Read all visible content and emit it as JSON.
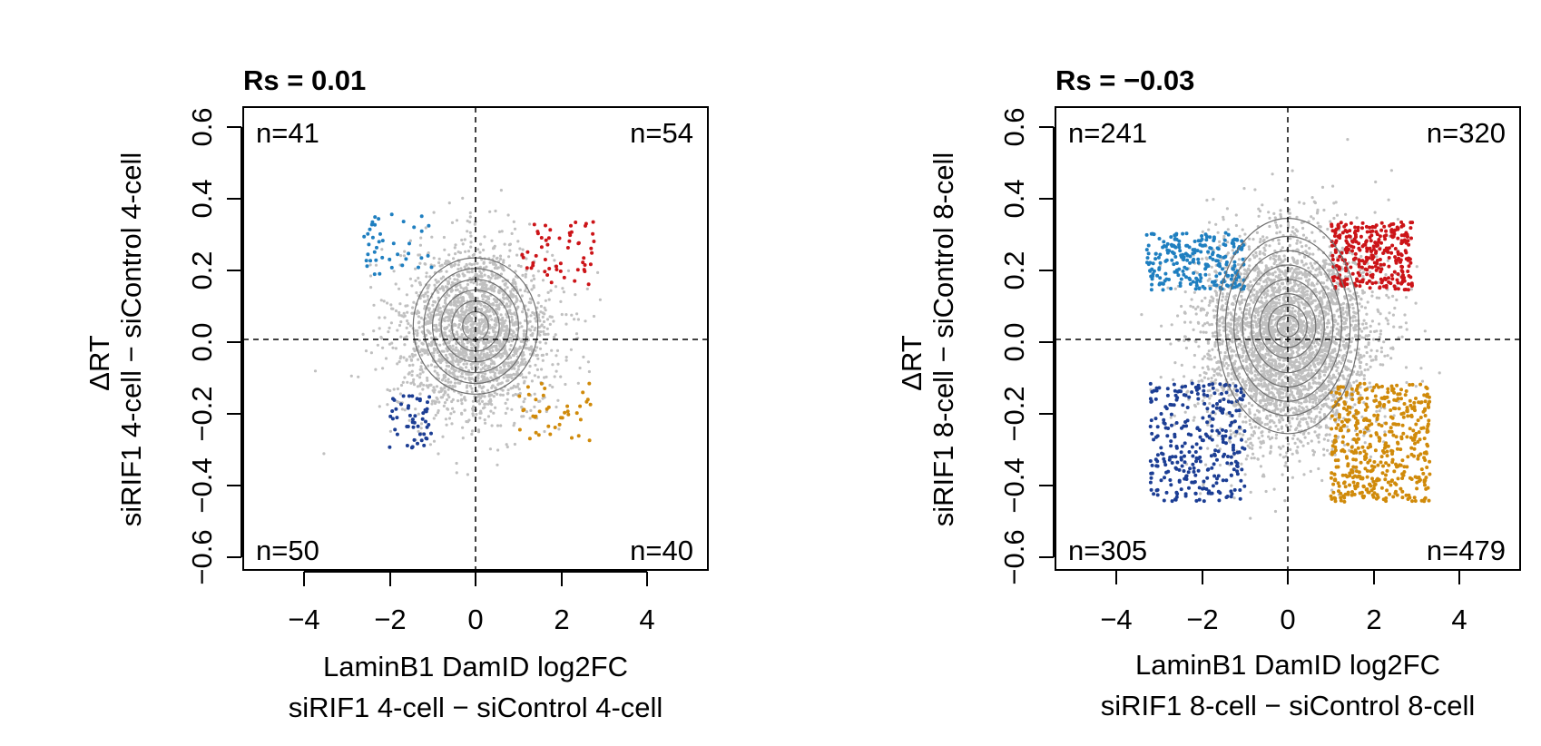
{
  "chart_data": [
    {
      "type": "scatter",
      "title": "Rs = 0.01",
      "xlabel": [
        "LaminB1 DamID log2FC",
        "siRIF1 4-cell − siControl 4-cell"
      ],
      "ylabel": [
        "ΔRT",
        "siRIF1 4-cell − siControl 4-cell"
      ],
      "xlim": [
        -5.4,
        5.4
      ],
      "ylim": [
        -0.64,
        0.65
      ],
      "xticks": [
        -4,
        -2,
        0,
        2,
        4
      ],
      "xtick_labels": [
        "−4",
        "−2",
        "0",
        "2",
        "4"
      ],
      "yticks": [
        -0.6,
        -0.4,
        -0.2,
        0.0,
        0.2,
        0.4,
        0.6
      ],
      "ytick_labels": [
        "−0.6",
        "−0.4",
        "−0.2",
        "0.0",
        "0.2",
        "0.4",
        "0.6"
      ],
      "reference_lines": {
        "x": 0,
        "y": 0
      },
      "background_cloud": {
        "center": [
          0,
          0.02
        ],
        "sd": [
          0.9,
          0.12
        ],
        "count": 2200,
        "color": "#c0c0c0"
      },
      "contours": {
        "center": [
          0,
          0.04
        ],
        "rx": [
          0.3,
          0.55,
          0.8,
          1.0,
          1.2,
          1.45
        ],
        "ry": [
          0.04,
          0.07,
          0.1,
          0.13,
          0.16,
          0.19
        ]
      },
      "quadrants": [
        {
          "name": "top-left",
          "count_label": "n=41",
          "n": 41,
          "color": "#1f7fc0",
          "x": [
            -2.6,
            -1.0
          ],
          "y": [
            0.18,
            0.36
          ]
        },
        {
          "name": "top-right",
          "count_label": "n=54",
          "n": 54,
          "color": "#cc1418",
          "x": [
            1.0,
            2.8
          ],
          "y": [
            0.15,
            0.33
          ]
        },
        {
          "name": "bottom-left",
          "count_label": "n=50",
          "n": 50,
          "color": "#1c3e94",
          "x": [
            -2.1,
            -1.0
          ],
          "y": [
            -0.3,
            -0.15
          ]
        },
        {
          "name": "bottom-right",
          "count_label": "n=40",
          "n": 40,
          "color": "#d08a0a",
          "x": [
            1.0,
            2.7
          ],
          "y": [
            -0.28,
            -0.12
          ]
        }
      ]
    },
    {
      "type": "scatter",
      "title": "Rs = −0.03",
      "xlabel": [
        "LaminB1 DamID log2FC",
        "siRIF1 8-cell − siControl 8-cell"
      ],
      "ylabel": [
        "ΔRT",
        "siRIF1 8-cell − siControl 8-cell"
      ],
      "xlim": [
        -5.4,
        5.4
      ],
      "ylim": [
        -0.64,
        0.65
      ],
      "xticks": [
        -4,
        -2,
        0,
        2,
        4
      ],
      "xtick_labels": [
        "−4",
        "−2",
        "0",
        "2",
        "4"
      ],
      "yticks": [
        -0.6,
        -0.4,
        -0.2,
        0.0,
        0.2,
        0.4,
        0.6
      ],
      "ytick_labels": [
        "−0.6",
        "−0.4",
        "−0.2",
        "0.0",
        "0.2",
        "0.4",
        "0.6"
      ],
      "reference_lines": {
        "x": 0,
        "y": 0
      },
      "background_cloud": {
        "center": [
          0,
          0.0
        ],
        "sd": [
          1.0,
          0.15
        ],
        "count": 3600,
        "color": "#c0c0c0"
      },
      "contours": {
        "center": [
          0,
          0.04
        ],
        "rx": [
          0.25,
          0.45,
          0.65,
          0.85,
          1.05,
          1.25,
          1.45,
          1.65
        ],
        "ry": [
          0.03,
          0.06,
          0.09,
          0.13,
          0.17,
          0.21,
          0.25,
          0.3
        ]
      },
      "quadrants": [
        {
          "name": "top-left",
          "count_label": "n=241",
          "n": 241,
          "color": "#1f7fc0",
          "x": [
            -3.3,
            -1.0
          ],
          "y": [
            0.14,
            0.3
          ]
        },
        {
          "name": "top-right",
          "count_label": "n=320",
          "n": 320,
          "color": "#cc1418",
          "x": [
            1.0,
            2.9
          ],
          "y": [
            0.14,
            0.33
          ]
        },
        {
          "name": "bottom-left",
          "count_label": "n=305",
          "n": 305,
          "color": "#1c3e94",
          "x": [
            -3.2,
            -1.0
          ],
          "y": [
            -0.45,
            -0.12
          ]
        },
        {
          "name": "bottom-right",
          "count_label": "n=479",
          "n": 479,
          "color": "#d08a0a",
          "x": [
            1.0,
            3.3
          ],
          "y": [
            -0.45,
            -0.12
          ]
        }
      ]
    }
  ]
}
